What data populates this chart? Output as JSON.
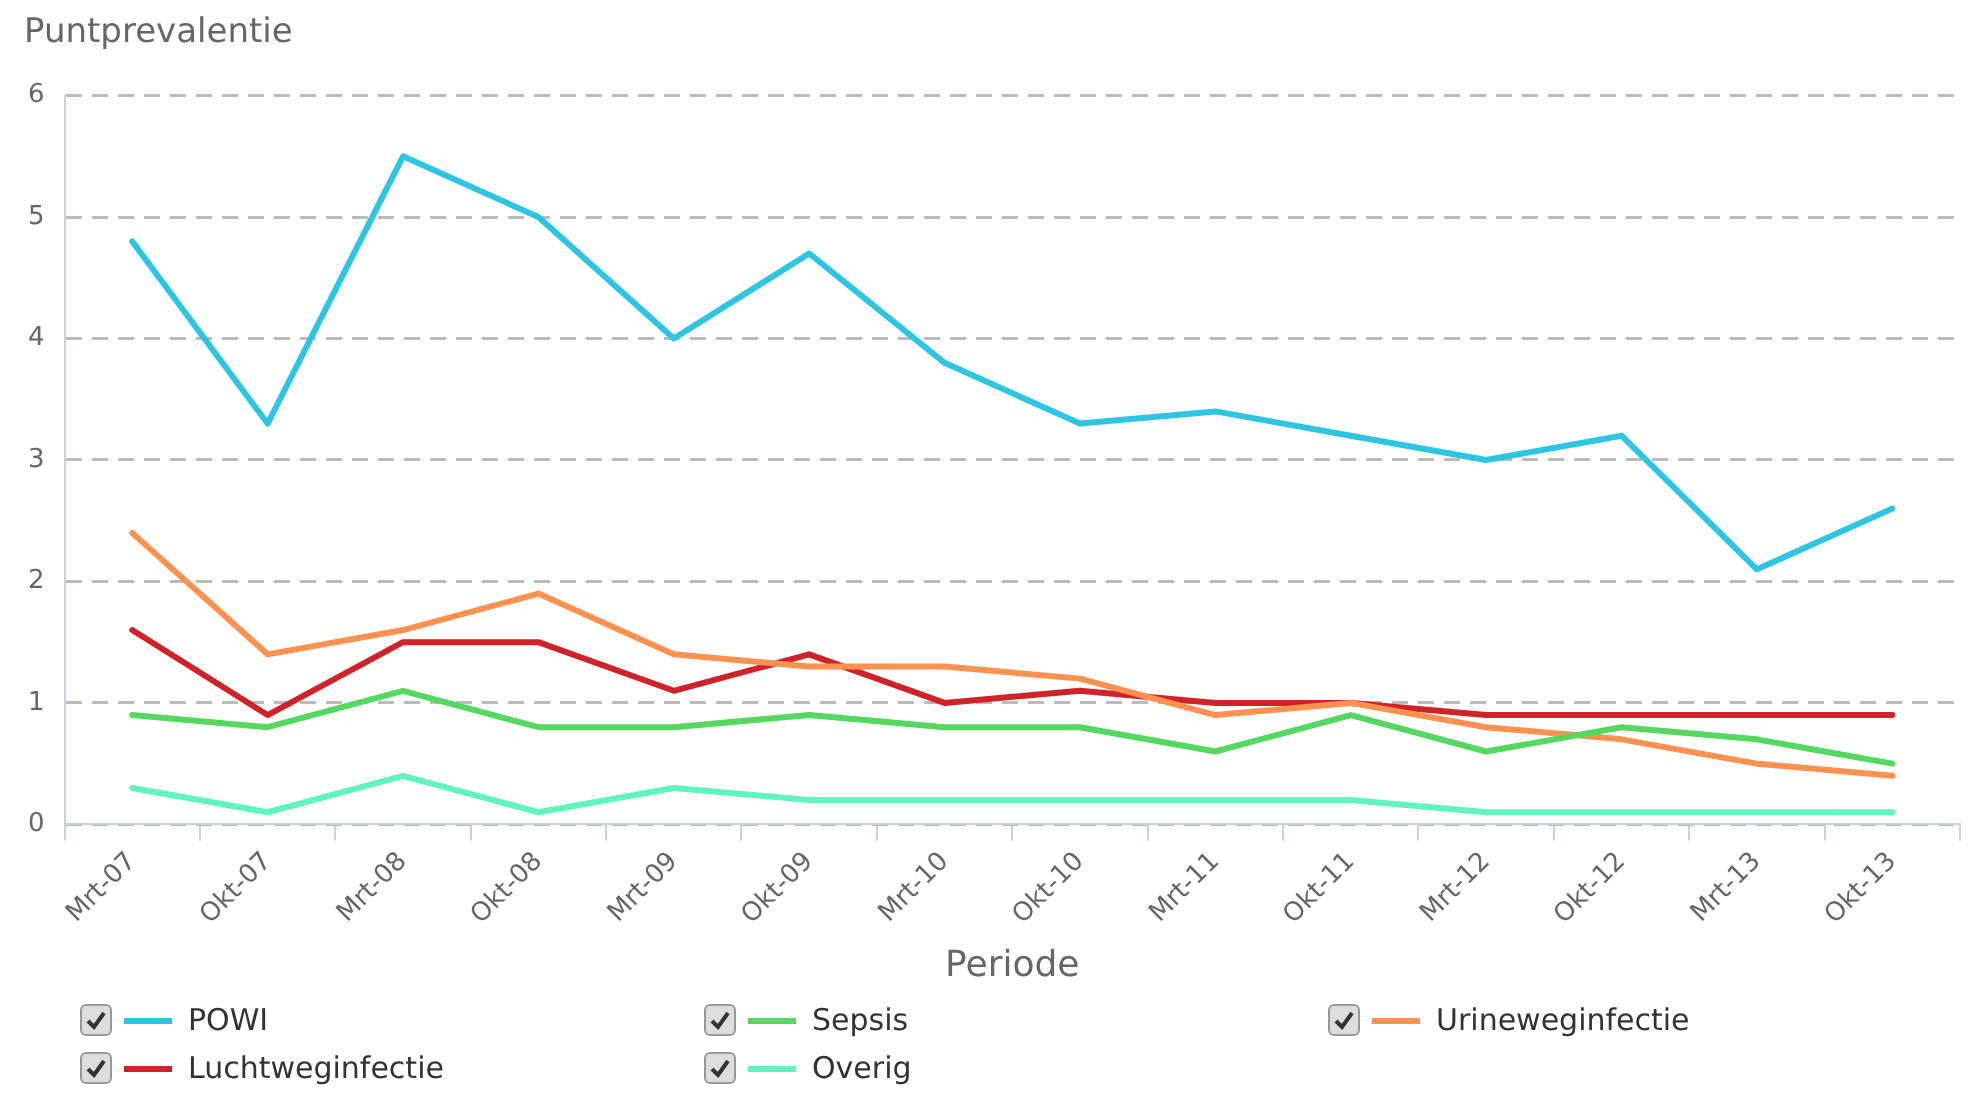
{
  "chart_data": {
    "type": "line",
    "ylabel": "Puntprevalentie",
    "xlabel": "Periode",
    "categories": [
      "Mrt-07",
      "Okt-07",
      "Mrt-08",
      "Okt-08",
      "Mrt-09",
      "Okt-09",
      "Mrt-10",
      "Okt-10",
      "Mrt-11",
      "Okt-11",
      "Mrt-12",
      "Okt-12",
      "Mrt-13",
      "Okt-13"
    ],
    "series": [
      {
        "name": "POWI",
        "color": "#2ec5e3",
        "values": [
          4.8,
          3.3,
          5.5,
          5.0,
          4.0,
          4.7,
          3.8,
          3.3,
          3.4,
          3.2,
          3.0,
          3.2,
          2.1,
          2.6
        ]
      },
      {
        "name": "Sepsis",
        "color": "#55d85f",
        "values": [
          0.9,
          0.8,
          1.1,
          0.8,
          0.8,
          0.9,
          0.8,
          0.8,
          0.6,
          0.9,
          0.6,
          0.8,
          0.7,
          0.5
        ]
      },
      {
        "name": "Urineweginfectie",
        "color": "#fd9150",
        "values": [
          2.4,
          1.4,
          1.6,
          1.9,
          1.4,
          1.3,
          1.3,
          1.2,
          0.9,
          1.0,
          0.8,
          0.7,
          0.5,
          0.4
        ]
      },
      {
        "name": "Luchtweginfectie",
        "color": "#cf2329",
        "values": [
          1.6,
          0.9,
          1.5,
          1.5,
          1.1,
          1.4,
          1.0,
          1.1,
          1.0,
          1.0,
          0.9,
          0.9,
          0.9,
          0.9
        ]
      },
      {
        "name": "Overig",
        "color": "#5ff5bd",
        "values": [
          0.3,
          0.1,
          0.4,
          0.1,
          0.3,
          0.2,
          0.2,
          0.2,
          0.2,
          0.2,
          0.1,
          0.1,
          0.1,
          0.1
        ]
      }
    ],
    "ylim": [
      0,
      6
    ],
    "yticks": [
      0,
      1,
      2,
      3,
      4,
      5,
      6
    ],
    "grid": "y",
    "legend": "bottom",
    "marker": "none",
    "line_style": "solid"
  }
}
